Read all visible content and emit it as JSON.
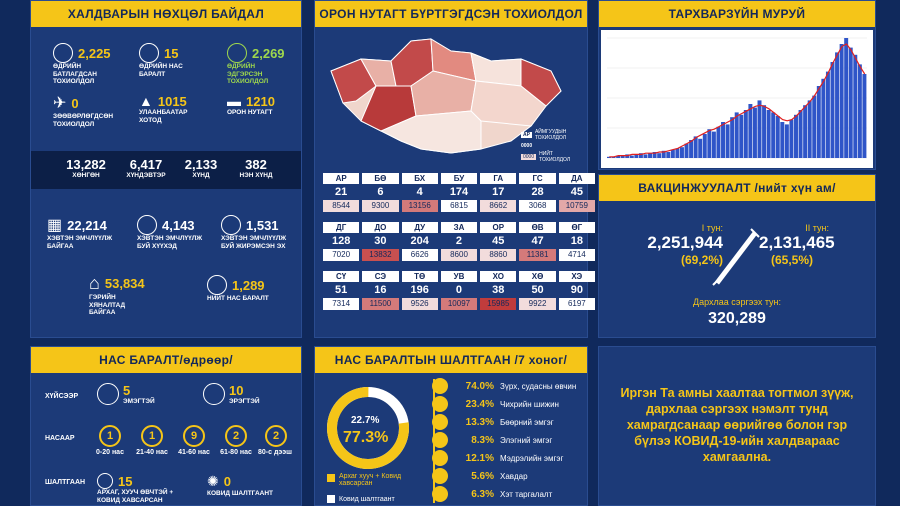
{
  "infection": {
    "title": "ХАЛДВАРЫН НӨХЦӨЛ БАЙДАЛ",
    "daily_confirmed": {
      "value": "2,225",
      "label": "ӨДРИЙН БАТЛАГДСАН ТОХИОЛДОЛ"
    },
    "daily_deaths": {
      "value": "15",
      "label": "ӨДРИЙН НАС БАРАЛТ"
    },
    "daily_recovered": {
      "value": "2,269",
      "label": "ӨДРИЙН ЭДГЭРСЭН ТОХИОЛДОЛ"
    },
    "imported": {
      "value": "0",
      "label": "ЗӨӨВӨРЛӨГДСӨН ТОХИОЛДОЛ"
    },
    "ulaanbaatar": {
      "value": "1015",
      "label": "УЛААНБААТАР ХОТОД"
    },
    "provinces": {
      "value": "1210",
      "label": "ОРОН НУТАГТ"
    },
    "tests": [
      {
        "value": "13,282",
        "label": "ХӨНГӨН"
      },
      {
        "value": "6,417",
        "label": "ХҮНДЭВТЭР"
      },
      {
        "value": "2,133",
        "label": "ХҮНД"
      },
      {
        "value": "382",
        "label": "НЭН ХҮНД"
      }
    ],
    "hospital_total": {
      "value": "22,214",
      "label": "ХЭВТЭН ЭМЧЛҮҮЛЖ БАЙГАА"
    },
    "hospital_children": {
      "value": "4,143",
      "label": "ХЭВТЭН ЭМЧЛҮҮЛЖ БУЙ ХҮҮХЭД"
    },
    "hospital_pregnant": {
      "value": "1,531",
      "label": "ХЭВТЭН ЭМЧЛҮҮЛЖ БУЙ ЖИРЭМСЭН ЭХ"
    },
    "home_care": {
      "value": "53,834",
      "label": "ГЭРИЙН ХЯНАЛТАД БАЙГАА"
    },
    "total_deaths": {
      "value": "1,289",
      "label": "НИЙТ НАС БАРАЛТ"
    }
  },
  "regional": {
    "title": "ОРОН НУТАГТ БҮРТГЭГДСЭН ТОХИОЛДОЛ",
    "legend": {
      "code": "АР",
      "daily_value": "0000",
      "daily_label": "АЙМГУУДЫН ТОХИОЛДОЛ",
      "total_value": "0000",
      "total_label": "НИЙТ ТОХИОЛДОЛ"
    },
    "rows": [
      [
        {
          "code": "АР",
          "daily": "21",
          "total": "8544",
          "color": "#f2dcdc"
        },
        {
          "code": "БӨ",
          "daily": "6",
          "total": "9300",
          "color": "#f2dcdc"
        },
        {
          "code": "БХ",
          "daily": "4",
          "total": "13156",
          "color": "#d47a7a"
        },
        {
          "code": "БУ",
          "daily": "174",
          "total": "6815",
          "color": "#ffffff"
        },
        {
          "code": "ГА",
          "daily": "17",
          "total": "8662",
          "color": "#f2dcdc"
        },
        {
          "code": "ГС",
          "daily": "28",
          "total": "3068",
          "color": "#ffffff"
        },
        {
          "code": "ДА",
          "daily": "45",
          "total": "10759",
          "color": "#e3a8a8"
        }
      ],
      [
        {
          "code": "ДГ",
          "daily": "128",
          "total": "7020",
          "color": "#ffffff"
        },
        {
          "code": "ДО",
          "daily": "30",
          "total": "13832",
          "color": "#c85050"
        },
        {
          "code": "ДУ",
          "daily": "204",
          "total": "6626",
          "color": "#ffffff"
        },
        {
          "code": "ЗА",
          "daily": "2",
          "total": "8600",
          "color": "#f2dcdc"
        },
        {
          "code": "ОР",
          "daily": "45",
          "total": "8860",
          "color": "#f2dcdc"
        },
        {
          "code": "ӨВ",
          "daily": "47",
          "total": "11381",
          "color": "#d47a7a"
        },
        {
          "code": "ӨГ",
          "daily": "18",
          "total": "4714",
          "color": "#ffffff"
        }
      ],
      [
        {
          "code": "СҮ",
          "daily": "51",
          "total": "7314",
          "color": "#ffffff"
        },
        {
          "code": "СЭ",
          "daily": "16",
          "total": "11500",
          "color": "#d47a7a"
        },
        {
          "code": "ТӨ",
          "daily": "196",
          "total": "9526",
          "color": "#f2dcdc"
        },
        {
          "code": "УВ",
          "daily": "0",
          "total": "10097",
          "color": "#d47a7a"
        },
        {
          "code": "ХО",
          "daily": "38",
          "total": "15985",
          "color": "#c03c3c"
        },
        {
          "code": "ХӨ",
          "daily": "50",
          "total": "9922",
          "color": "#f2dcdc"
        },
        {
          "code": "ХЭ",
          "daily": "90",
          "total": "6197",
          "color": "#ffffff"
        }
      ]
    ]
  },
  "trend": {
    "title": "ТАРХВАРЗҮЙН МУРУЙ"
  },
  "chart_data": {
    "type": "bar",
    "title": "ТАРХВАРЗҮЙН МУРУЙ",
    "series": [
      {
        "values": [
          1,
          1,
          2,
          2,
          3,
          2,
          3,
          4,
          3,
          4,
          5,
          4,
          6,
          5,
          7,
          8,
          9,
          12,
          15,
          18,
          16,
          20,
          24,
          22,
          26,
          30,
          28,
          34,
          38,
          36,
          40,
          45,
          42,
          48,
          44,
          40,
          38,
          35,
          30,
          28,
          32,
          36,
          40,
          44,
          48,
          52,
          60,
          66,
          72,
          80,
          88,
          95,
          100,
          92,
          86,
          78,
          70
        ]
      }
    ],
    "line": {
      "values": [
        1,
        1,
        2,
        2,
        2,
        3,
        3,
        3,
        4,
        4,
        4,
        5,
        5,
        6,
        7,
        8,
        10,
        12,
        14,
        17,
        19,
        21,
        23,
        24,
        26,
        28,
        30,
        32,
        35,
        37,
        39,
        41,
        43,
        44,
        43,
        41,
        38,
        35,
        32,
        31,
        32,
        35,
        39,
        43,
        47,
        52,
        58,
        64,
        71,
        79,
        86,
        93,
        95,
        90,
        83,
        76,
        70
      ]
    },
    "xlabel": "",
    "ylabel": ""
  },
  "vaccination": {
    "title": "ВАКЦИНЖУУЛАЛТ /нийт хүн ам/",
    "dose1": {
      "label": "I тун:",
      "value": "2,251,944",
      "pct": "(69,2%)"
    },
    "dose2": {
      "label": "II тун:",
      "value": "2,131,465",
      "pct": "(65,5%)"
    },
    "booster": {
      "label": "Дархлаа сэргээх тун:",
      "value": "320,289"
    }
  },
  "deaths": {
    "title": "НАС БАРАЛТ/өдрөөр/",
    "gender_label": "ХҮЙСЭЭР",
    "female": {
      "value": "5",
      "label": "ЭМЭГТЭЙ"
    },
    "male": {
      "value": "10",
      "label": "ЭРЭГТЭЙ"
    },
    "age_label": "НАСААР",
    "ages": [
      {
        "value": "1",
        "label": "0-20 нас"
      },
      {
        "value": "1",
        "label": "21-40 нас"
      },
      {
        "value": "9",
        "label": "41-60 нас"
      },
      {
        "value": "2",
        "label": "61-80 нас"
      },
      {
        "value": "2",
        "label": "80-с дээш"
      }
    ],
    "cause_label": "ШАЛТГААН",
    "chronic": {
      "value": "15",
      "label": "АРХАГ, ХУУЧ ӨВЧТЭЙ + КОВИД ХАВСАРСАН"
    },
    "covid_only": {
      "value": "0",
      "label": "КОВИД ШАЛТГААНТ"
    }
  },
  "causes": {
    "title": "НАС БАРАЛТЫН ШАЛТГААН /7 хоног/",
    "donut_small": "22.7%",
    "donut_big": "77.3%",
    "legend_chronic": "Архаг хууч + Ковид хавсарсан",
    "legend_covid": "Ковид шалтгаант",
    "items": [
      {
        "pct": "74.0%",
        "name": "Зүрх, судасны өвчин"
      },
      {
        "pct": "23.4%",
        "name": "Чихрийн шижин"
      },
      {
        "pct": "13.3%",
        "name": "Бөөрний эмгэг"
      },
      {
        "pct": "8.3%",
        "name": "Элэгний эмгэг"
      },
      {
        "pct": "12.1%",
        "name": "Мэдрэлийн эмгэг"
      },
      {
        "pct": "5.6%",
        "name": "Хавдар"
      },
      {
        "pct": "6.3%",
        "name": "Хэт таргалалт"
      }
    ]
  },
  "message": {
    "text": "Иргэн Та амны хаалтаа тогтмол зүүж, дархлаа сэргээх нэмэлт тунд хамрагдсанаар өөрийгөө болон гэр бүлээ КОВИД-19-ийн халдвараас хамгаална."
  },
  "colors": {
    "accent": "#f5c518",
    "panel": "#1c3a78",
    "background": "#10295c",
    "green": "#9fd84d"
  }
}
